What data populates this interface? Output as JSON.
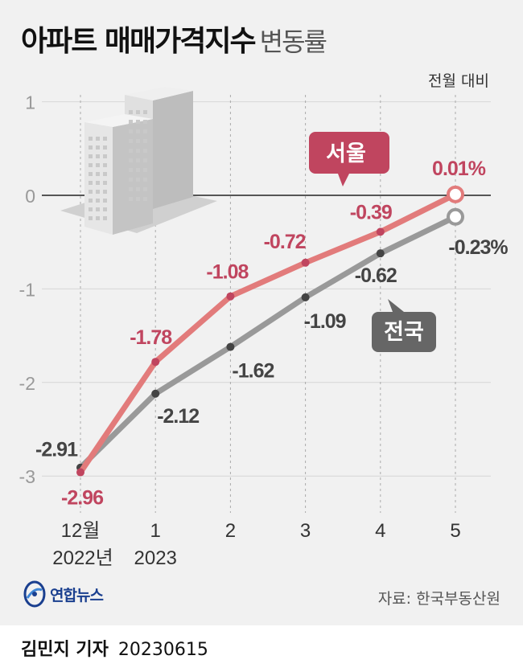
{
  "header": {
    "title_main": "아파트 매매가격지수",
    "title_sub": "변동률",
    "unit": "전월 대비"
  },
  "chart_data": {
    "type": "line",
    "title": "아파트 매매가격지수 변동률",
    "subtitle": "전월 대비",
    "categories": [
      "12월",
      "1",
      "2",
      "3",
      "4",
      "5"
    ],
    "year_labels": [
      "2022년",
      "2023"
    ],
    "y_ticks": [
      1,
      0,
      -1,
      -2,
      -3
    ],
    "ylim": [
      -3.2,
      1.1
    ],
    "series": [
      {
        "name": "서울",
        "values": [
          -2.96,
          -1.78,
          -1.08,
          -0.72,
          -0.39,
          0.01
        ],
        "color": "#e27b7b",
        "label_color": "#c0455f",
        "last_label": "0.01%"
      },
      {
        "name": "전국",
        "values": [
          -2.91,
          -2.12,
          -1.62,
          -1.09,
          -0.62,
          -0.23
        ],
        "color": "#999999",
        "label_color": "#444444",
        "last_label": "-0.23%"
      }
    ]
  },
  "footer": {
    "logo_text": "연합뉴스",
    "source": "자료: 한국부동산원",
    "reporter": "김민지 기자",
    "date": "20230615"
  },
  "colors": {
    "seoul": "#e27b7b",
    "national": "#999999",
    "seoul_label": "#c0455f",
    "national_label": "#444444"
  }
}
